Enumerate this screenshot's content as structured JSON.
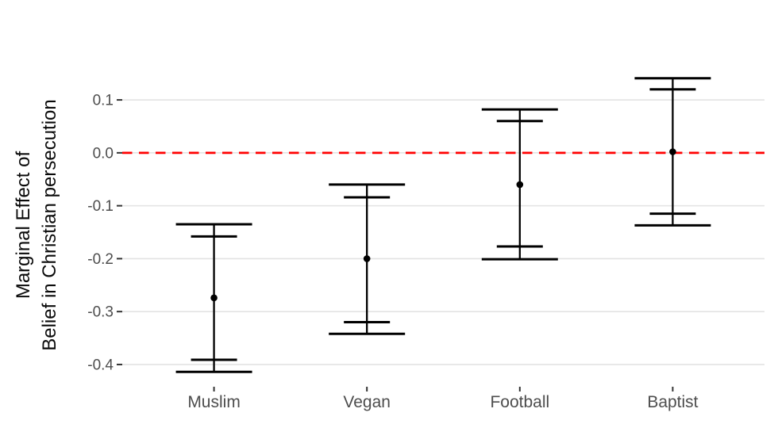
{
  "figure": {
    "background": "#FFFFFF",
    "y_axis_title_lines": [
      "Marginal Effect of",
      "Belief in Christian persecution"
    ]
  },
  "chart_data": {
    "type": "scatter",
    "subtype": "point-estimate-with-double-errorbars",
    "title": "",
    "xlabel": "",
    "ylabel": "Marginal Effect of Belief in Christian persecution",
    "legend": "none",
    "grid": "horizontal",
    "categories": [
      "Muslim",
      "Vegan",
      "Football",
      "Baptist"
    ],
    "points": [
      {
        "category": "Muslim",
        "estimate": -0.274,
        "inner_low": -0.391,
        "inner_high": -0.158,
        "outer_low": -0.414,
        "outer_high": -0.135
      },
      {
        "category": "Vegan",
        "estimate": -0.2,
        "inner_low": -0.32,
        "inner_high": -0.084,
        "outer_low": -0.342,
        "outer_high": -0.06
      },
      {
        "category": "Football",
        "estimate": -0.06,
        "inner_low": -0.177,
        "inner_high": 0.06,
        "outer_low": -0.201,
        "outer_high": 0.082
      },
      {
        "category": "Baptist",
        "estimate": 0.002,
        "inner_low": -0.115,
        "inner_high": 0.12,
        "outer_low": -0.137,
        "outer_high": 0.141
      }
    ],
    "y_ticks": {
      "values": [
        0.1,
        0.0,
        -0.1,
        -0.2,
        -0.3,
        -0.4
      ],
      "labels": [
        "0.1",
        "0.0",
        "-0.1",
        "-0.2",
        "-0.3",
        "-0.4"
      ]
    },
    "ylim": [
      -0.442,
      0.169
    ],
    "reference_line": {
      "value": 0.0,
      "color": "#FF0000",
      "style": "dashed"
    },
    "colors": {
      "point": "#000000",
      "error_bar": "#000000",
      "gridline": "#E3E3E3",
      "tick_mark": "#333333",
      "tick_label": "#4D4D4D",
      "axis_title": "#0A0A0A",
      "background": "#FFFFFF"
    }
  }
}
